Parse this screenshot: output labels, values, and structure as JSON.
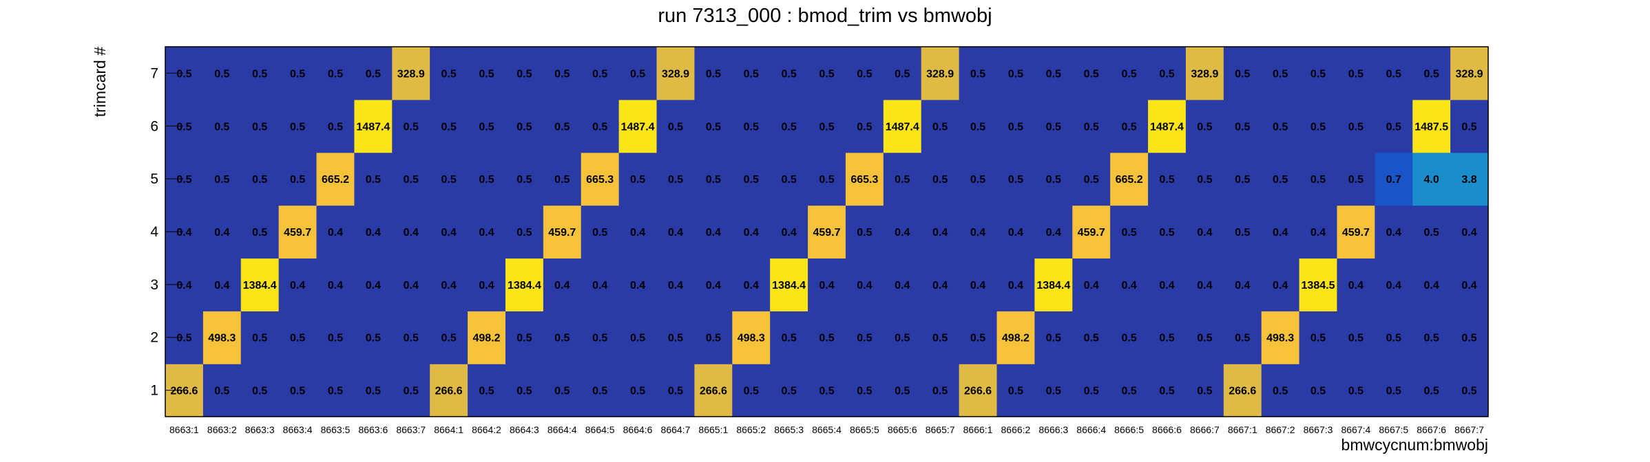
{
  "chart_data": {
    "type": "heatmap",
    "title": "run 7313_000 : bmod_trim vs bmwobj",
    "xlabel": "bmwcycnum:bmwobj",
    "ylabel": "trimcard #",
    "x_categories": [
      "8663:1",
      "8663:2",
      "8663:3",
      "8663:4",
      "8663:5",
      "8663:6",
      "8663:7",
      "8664:1",
      "8664:2",
      "8664:3",
      "8664:4",
      "8664:5",
      "8664:6",
      "8664:7",
      "8665:1",
      "8665:2",
      "8665:3",
      "8665:4",
      "8665:5",
      "8665:6",
      "8665:7",
      "8666:1",
      "8666:2",
      "8666:3",
      "8666:4",
      "8666:5",
      "8666:6",
      "8666:7",
      "8667:1",
      "8667:2",
      "8667:3",
      "8667:4",
      "8667:5",
      "8667:6",
      "8667:7"
    ],
    "y_categories": [
      "1",
      "2",
      "3",
      "4",
      "5",
      "6",
      "7"
    ],
    "values": [
      [
        "266.6",
        "0.5",
        "0.5",
        "0.5",
        "0.5",
        "0.5",
        "0.5",
        "266.6",
        "0.5",
        "0.5",
        "0.5",
        "0.5",
        "0.5",
        "0.5",
        "266.6",
        "0.5",
        "0.5",
        "0.5",
        "0.5",
        "0.5",
        "0.5",
        "266.6",
        "0.5",
        "0.5",
        "0.5",
        "0.5",
        "0.5",
        "0.5",
        "266.6",
        "0.5",
        "0.5",
        "0.5",
        "0.5",
        "0.5",
        "0.5"
      ],
      [
        "0.5",
        "498.3",
        "0.5",
        "0.5",
        "0.5",
        "0.5",
        "0.5",
        "0.5",
        "498.2",
        "0.5",
        "0.5",
        "0.5",
        "0.5",
        "0.5",
        "0.5",
        "498.3",
        "0.5",
        "0.5",
        "0.5",
        "0.5",
        "0.5",
        "0.5",
        "498.2",
        "0.5",
        "0.5",
        "0.5",
        "0.5",
        "0.5",
        "0.5",
        "498.3",
        "0.5",
        "0.5",
        "0.5",
        "0.5",
        "0.5"
      ],
      [
        "0.4",
        "0.4",
        "1384.4",
        "0.4",
        "0.4",
        "0.4",
        "0.4",
        "0.4",
        "0.4",
        "1384.4",
        "0.4",
        "0.4",
        "0.4",
        "0.4",
        "0.4",
        "0.4",
        "1384.4",
        "0.4",
        "0.4",
        "0.4",
        "0.4",
        "0.4",
        "0.4",
        "1384.4",
        "0.4",
        "0.4",
        "0.4",
        "0.4",
        "0.4",
        "0.4",
        "1384.5",
        "0.4",
        "0.4",
        "0.4",
        "0.4"
      ],
      [
        "0.4",
        "0.4",
        "0.5",
        "459.7",
        "0.4",
        "0.4",
        "0.4",
        "0.4",
        "0.4",
        "0.5",
        "459.7",
        "0.5",
        "0.4",
        "0.4",
        "0.4",
        "0.4",
        "0.4",
        "459.7",
        "0.5",
        "0.4",
        "0.4",
        "0.4",
        "0.4",
        "0.4",
        "459.7",
        "0.5",
        "0.5",
        "0.4",
        "0.5",
        "0.4",
        "0.4",
        "459.7",
        "0.4",
        "0.5",
        "0.4"
      ],
      [
        "0.5",
        "0.5",
        "0.5",
        "0.5",
        "665.2",
        "0.5",
        "0.5",
        "0.5",
        "0.5",
        "0.5",
        "0.5",
        "665.3",
        "0.5",
        "0.5",
        "0.5",
        "0.5",
        "0.5",
        "0.5",
        "665.3",
        "0.5",
        "0.5",
        "0.5",
        "0.5",
        "0.5",
        "0.5",
        "665.2",
        "0.5",
        "0.5",
        "0.5",
        "0.5",
        "0.5",
        "0.5",
        "0.7",
        "4.0",
        "3.8"
      ],
      [
        "0.5",
        "0.5",
        "0.5",
        "0.5",
        "0.5",
        "1487.4",
        "0.5",
        "0.5",
        "0.5",
        "0.5",
        "0.5",
        "0.5",
        "1487.4",
        "0.5",
        "0.5",
        "0.5",
        "0.5",
        "0.5",
        "0.5",
        "1487.4",
        "0.5",
        "0.5",
        "0.5",
        "0.5",
        "0.5",
        "0.5",
        "1487.4",
        "0.5",
        "0.5",
        "0.5",
        "0.5",
        "0.5",
        "0.5",
        "1487.5",
        "0.5"
      ],
      [
        "0.5",
        "0.5",
        "0.5",
        "0.5",
        "0.5",
        "0.5",
        "328.9",
        "0.5",
        "0.5",
        "0.5",
        "0.5",
        "0.5",
        "0.5",
        "328.9",
        "0.5",
        "0.5",
        "0.5",
        "0.5",
        "0.5",
        "0.5",
        "328.9",
        "0.5",
        "0.5",
        "0.5",
        "0.5",
        "0.5",
        "0.5",
        "328.9",
        "0.5",
        "0.5",
        "0.5",
        "0.5",
        "0.5",
        "0.5",
        "328.9"
      ]
    ],
    "colors": {
      "low": "#2a3aa6",
      "low_mid": "#1a55c8",
      "mid": "#1b8ccc",
      "high_warm": "#dfbb45",
      "high_orange": "#f5c23a",
      "high_yellow": "#fbe418",
      "frame": "#000000"
    }
  }
}
